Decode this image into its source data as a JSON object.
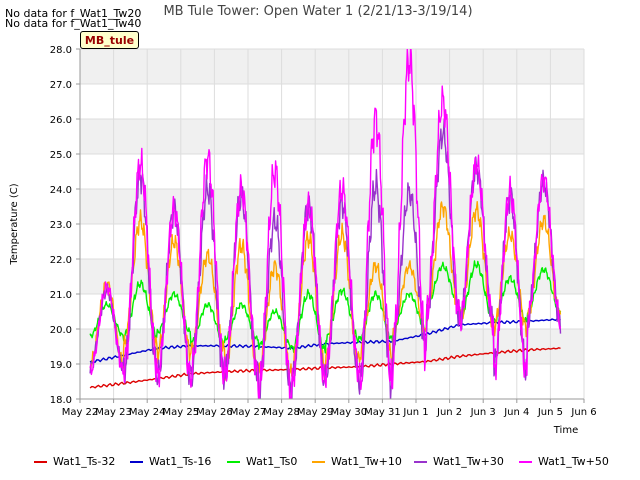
{
  "notices": [
    "No data for f_Wat1_Tw20",
    "No data for f_Wat1_Tw40"
  ],
  "badge": "MB_tule",
  "chart_data": {
    "type": "line",
    "title": "MB Tule Tower: Open Water 1 (2/21/13-3/19/14)",
    "xlabel": "Time",
    "ylabel": "Temperature (C)",
    "ylim": [
      18.0,
      28.0
    ],
    "xlim": [
      "May 22",
      "Jun 6"
    ],
    "x_ticks": [
      "May 22",
      "May 23",
      "May 24",
      "May 25",
      "May 26",
      "May 27",
      "May 28",
      "May 29",
      "May 30",
      "May 31",
      "Jun 1",
      "Jun 2",
      "Jun 3",
      "Jun 4",
      "Jun 5",
      "Jun 6"
    ],
    "y_ticks": [
      "18.0",
      "19.0",
      "20.0",
      "21.0",
      "22.0",
      "23.0",
      "24.0",
      "25.0",
      "26.0",
      "27.0",
      "28.0"
    ],
    "grid": true,
    "x": [
      "May 22",
      "May 23",
      "May 24",
      "May 25",
      "May 26",
      "May 27",
      "May 28",
      "May 29",
      "May 30",
      "May 31",
      "Jun 1",
      "Jun 2",
      "Jun 3",
      "Jun 4",
      "Jun 5"
    ],
    "x_end": "Jun 5",
    "series": [
      {
        "name": "Wat1_Ts-32",
        "color": "#dd0000",
        "values": [
          18.33,
          18.45,
          18.58,
          18.72,
          18.78,
          18.82,
          18.84,
          18.89,
          18.92,
          19.0,
          19.07,
          19.22,
          19.32,
          19.4,
          19.45
        ]
      },
      {
        "name": "Wat1_Ts-16",
        "color": "#0000cc",
        "values": [
          19.05,
          19.25,
          19.45,
          19.52,
          19.52,
          19.5,
          19.45,
          19.58,
          19.62,
          19.65,
          19.85,
          20.12,
          20.18,
          20.22,
          20.28
        ]
      },
      {
        "name": "Wat1_Ts0",
        "color": "#00ee00",
        "daily_max": [
          20.7,
          21.3,
          21.0,
          20.7,
          20.7,
          20.5,
          21.0,
          21.1,
          21.0,
          21.0,
          21.8,
          21.85,
          21.45,
          21.7,
          22.0
        ],
        "daily_min": [
          19.8,
          19.8,
          19.9,
          19.6,
          19.7,
          19.5,
          19.4,
          19.7,
          19.7,
          20.0,
          20.6,
          20.3,
          20.2,
          20.5,
          20.6
        ]
      },
      {
        "name": "Wat1_Tw+10",
        "color": "#ffa500",
        "daily_max": [
          21.3,
          23.1,
          22.5,
          22.1,
          22.4,
          21.8,
          22.6,
          22.7,
          21.8,
          21.8,
          23.5,
          23.4,
          22.7,
          23.1,
          23.5
        ],
        "daily_min": [
          19.0,
          19.5,
          19.3,
          19.4,
          18.8,
          18.7,
          18.9,
          19.1,
          19.2,
          19.9,
          20.4,
          20.2,
          20.0,
          20.3,
          20.3
        ]
      },
      {
        "name": "Wat1_Tw+30",
        "color": "#9933cc",
        "daily_max": [
          21.1,
          24.4,
          23.4,
          24.0,
          23.8,
          23.1,
          23.5,
          23.6,
          24.1,
          23.9,
          25.6,
          24.6,
          23.8,
          24.2,
          25.8
        ],
        "daily_min": [
          18.9,
          18.8,
          18.6,
          18.7,
          18.7,
          18.2,
          18.5,
          18.7,
          18.3,
          19.5,
          20.4,
          20.2,
          18.8,
          20.2,
          19.8
        ]
      },
      {
        "name": "Wat1_Tw+50",
        "color": "#ff00ff",
        "daily_max": [
          21.2,
          24.7,
          23.4,
          24.9,
          24.0,
          24.5,
          23.5,
          24.0,
          26.0,
          27.7,
          26.5,
          24.7,
          23.9,
          24.3,
          27.0
        ],
        "daily_min": [
          18.8,
          18.9,
          18.6,
          18.7,
          18.65,
          18.1,
          18.5,
          18.8,
          18.3,
          19.4,
          20.4,
          20.2,
          18.7,
          20.2,
          19.6
        ]
      }
    ],
    "legend": [
      "Wat1_Ts-32",
      "Wat1_Ts-16",
      "Wat1_Ts0",
      "Wat1_Tw+10",
      "Wat1_Tw+30",
      "Wat1_Tw+50"
    ],
    "legend_position": "bottom"
  }
}
